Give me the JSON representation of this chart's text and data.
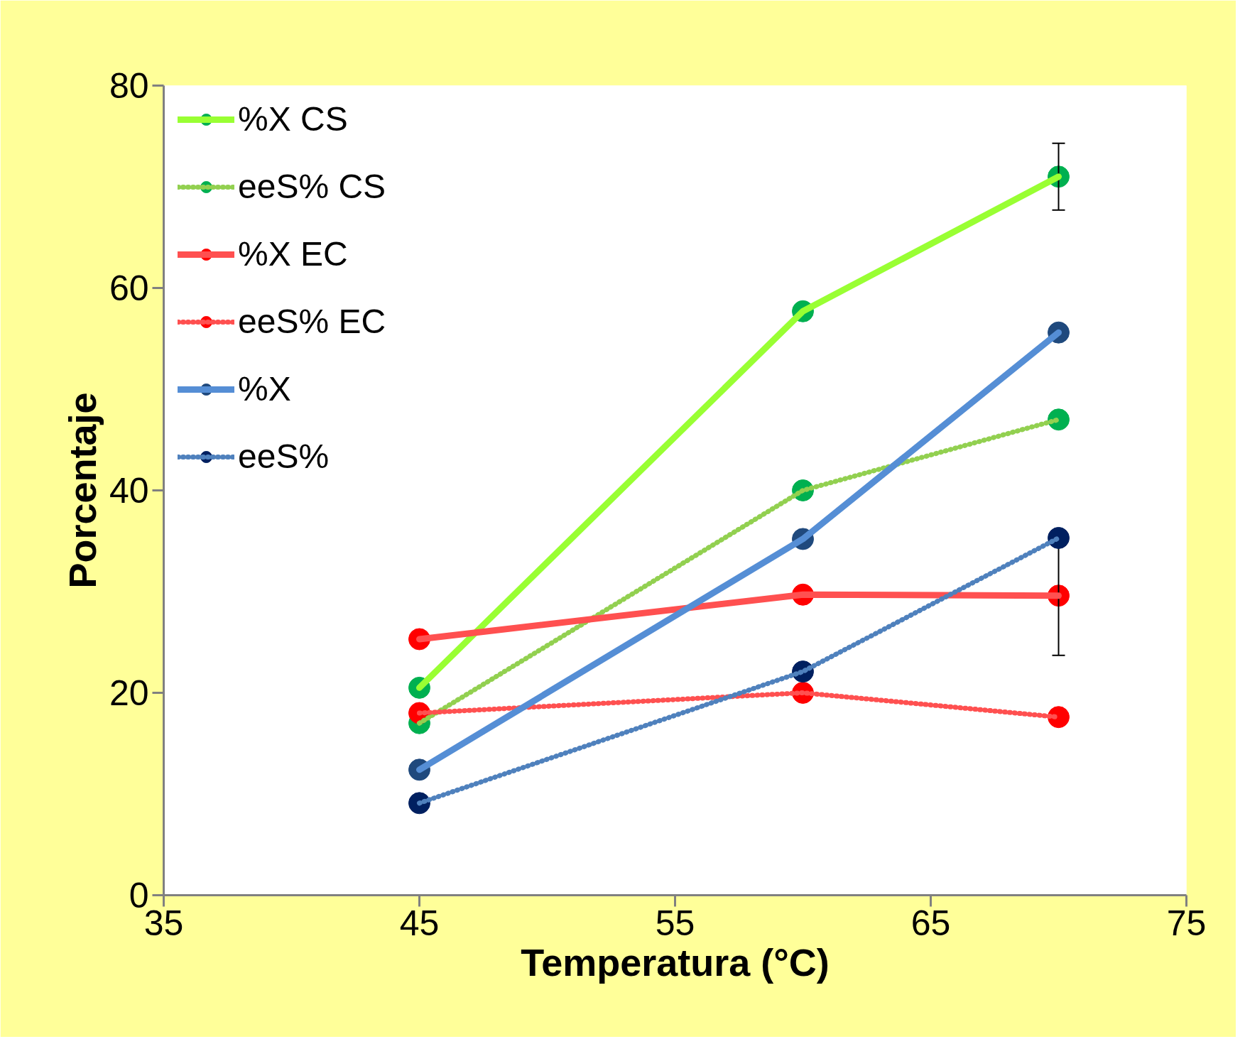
{
  "chart_data": {
    "type": "line",
    "xlabel": "Temperatura (°C)",
    "ylabel": "Porcentaje",
    "x": [
      45,
      60,
      70
    ],
    "series": [
      {
        "name": "%X CS",
        "color": "#99ff33",
        "colors": [
          "#00b050",
          "#00b050",
          "#00b050"
        ],
        "line_style": "solid",
        "values": [
          20.5,
          57.7,
          71.0
        ],
        "errors": [
          null,
          null,
          3.3
        ]
      },
      {
        "name": "eeS% CS",
        "color": "#92d050",
        "colors": [
          "#00b050",
          "#00b050",
          "#00b050"
        ],
        "line_style": "dotted",
        "values": [
          17.0,
          40.0,
          47.0
        ]
      },
      {
        "name": "%X EC",
        "color": "#ff5050",
        "colors": [
          "#ff0000",
          "#ff0000",
          "#ff0000"
        ],
        "line_style": "solid",
        "values": [
          25.3,
          29.7,
          29.6
        ],
        "errors": [
          null,
          null,
          5.9
        ]
      },
      {
        "name": "eeS% EC",
        "color": "#ff5050",
        "colors": [
          "#ff0000",
          "#ff0000",
          "#ff0000"
        ],
        "line_style": "dotted",
        "values": [
          18.0,
          20.0,
          17.6
        ]
      },
      {
        "name": "%X",
        "color": "#558ed5",
        "colors": [
          "#1f497d",
          "#1f497d",
          "#1f497d"
        ],
        "line_style": "solid",
        "values": [
          12.4,
          35.2,
          55.6
        ]
      },
      {
        "name": "eeS%",
        "color": "#4f81bd",
        "colors": [
          "#002060",
          "#002060",
          "#002060"
        ],
        "line_style": "dotted",
        "values": [
          9.1,
          22.1,
          35.3
        ]
      }
    ],
    "xlim": [
      35,
      75
    ],
    "xticks": [
      35,
      45,
      55,
      65,
      75
    ],
    "ylim": [
      0,
      80
    ],
    "yticks": [
      0,
      20,
      40,
      60,
      80
    ],
    "grid": false,
    "legend": "top left",
    "marker": "circle"
  }
}
